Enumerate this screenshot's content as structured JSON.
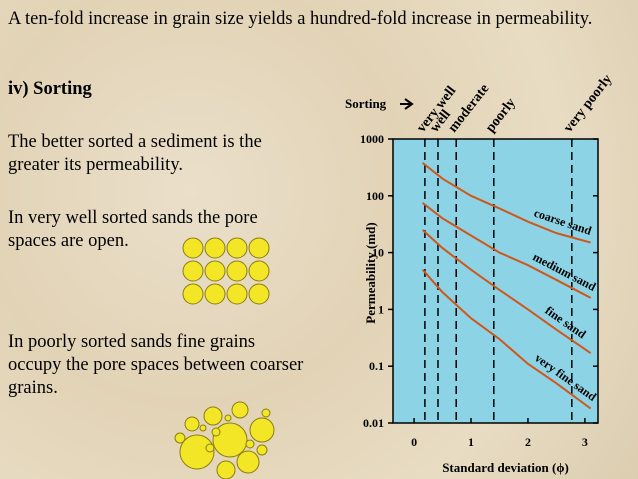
{
  "slide": {
    "title": "A ten-fold increase in grain size yields a hundred-fold increase in permeability.",
    "heading": "iv) Sorting",
    "paragraphs": [
      "The better sorted a sediment is the greater its permeability.",
      "In very well sorted sands the pore spaces are open.",
      "In poorly sorted sands fine grains occupy the pore spaces between coarser grains."
    ]
  },
  "chart_data": {
    "type": "line",
    "x_label": "Standard deviation (ϕ)",
    "y_label": "Permeability (md)",
    "y_log": true,
    "xlim": [
      -0.37,
      3.23
    ],
    "ylim": [
      0.01,
      1000
    ],
    "xticks": [
      0,
      1,
      2,
      3
    ],
    "yticks": [
      0.01,
      0.1,
      1,
      10,
      100,
      1000
    ],
    "x": [
      0.15,
      0.5,
      1,
      1.5,
      2,
      2.5,
      3.1
    ],
    "series": [
      {
        "name": "coarse sand",
        "color": "#d0571c",
        "values": [
          380,
          200,
          100,
          60,
          35,
          22,
          15
        ]
      },
      {
        "name": "medium sand",
        "color": "#d0571c",
        "values": [
          75,
          40,
          20,
          10,
          6,
          3.3,
          1.6
        ]
      },
      {
        "name": "fine sand",
        "color": "#d0571c",
        "values": [
          25,
          12,
          5,
          2.2,
          1,
          0.44,
          0.17
        ]
      },
      {
        "name": "very fine sand",
        "color": "#d0571c",
        "values": [
          5,
          2,
          0.7,
          0.3,
          0.11,
          0.05,
          0.018
        ]
      }
    ],
    "sorting_title": "Sorting",
    "sorting_lines": {
      "labels": [
        "very well",
        "well",
        "moderate",
        "poorly",
        "very poorly"
      ],
      "x": [
        0.19,
        0.42,
        0.74,
        1.4,
        2.77
      ]
    },
    "plot_color": "#8dd3e6"
  }
}
